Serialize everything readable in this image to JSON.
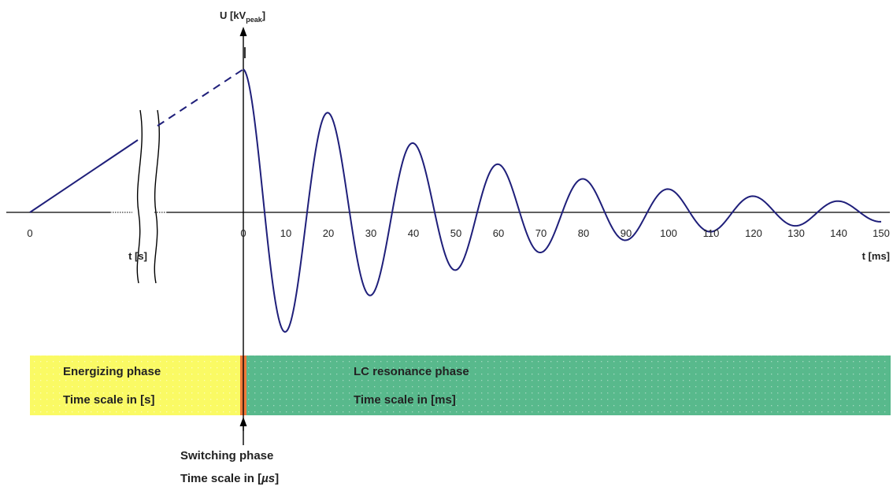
{
  "diagram": {
    "y_axis_label": "U [kV",
    "y_axis_label_sub": "peak",
    "y_axis_label_close": "]",
    "left_axis": {
      "zero_label": "0",
      "label": "t [s]"
    },
    "right_axis": {
      "label": "t [ms]",
      "ticks": [
        "0",
        "10",
        "20",
        "30",
        "40",
        "50",
        "60",
        "70",
        "80",
        "90",
        "100",
        "110",
        "120",
        "130",
        "140",
        "150"
      ]
    },
    "waveform": {
      "period_ms": 20,
      "decay": "damped cosine starting at peak at t = 0",
      "end_ms": 150
    },
    "phases": {
      "energizing": {
        "title": "Energizing phase",
        "scale": "Time scale in [s]",
        "color": "#fafa64"
      },
      "switching": {
        "color": "#f07a3a",
        "title": "Switching phase",
        "scale_prefix": "Time scale in [",
        "scale_unit": "µs",
        "scale_suffix": "]"
      },
      "lc_resonance": {
        "title": "LC resonance phase",
        "scale": "Time scale in [ms]",
        "color": "#58b98c"
      }
    },
    "colors": {
      "curve": "#1f1f7a",
      "axis": "#000000"
    }
  }
}
